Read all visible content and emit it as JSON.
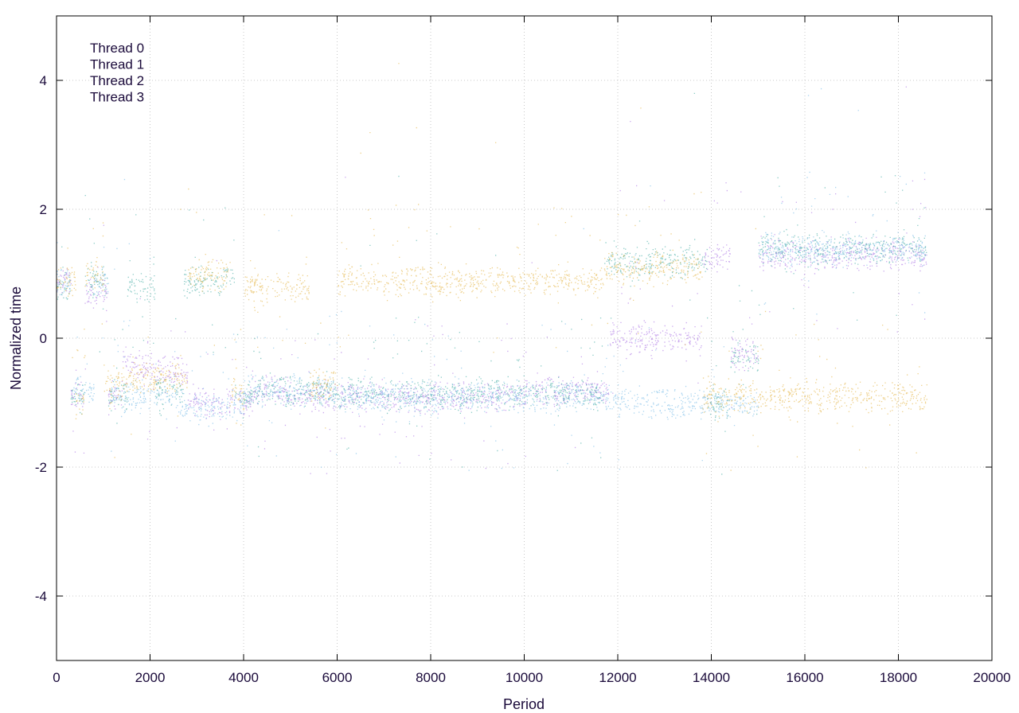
{
  "chart_data": {
    "type": "scatter",
    "title": "",
    "xlabel": "Period",
    "ylabel": "Normalized time",
    "xlim": [
      0,
      20000
    ],
    "ylim": [
      -5,
      5
    ],
    "xticks": [
      0,
      2000,
      4000,
      6000,
      8000,
      10000,
      12000,
      14000,
      16000,
      18000,
      20000
    ],
    "yticks": [
      -4,
      -2,
      0,
      2,
      4
    ],
    "grid": true,
    "legend_position": "top-left",
    "series": [
      {
        "name": "Thread 0",
        "color": "#9e5fe0",
        "segments": [
          [
            0,
            300,
            0.9
          ],
          [
            300,
            600,
            -0.9
          ],
          [
            600,
            1100,
            0.7
          ],
          [
            1100,
            1400,
            -0.9
          ],
          [
            1400,
            2000,
            -0.4
          ],
          [
            2000,
            2800,
            -0.5
          ],
          [
            2800,
            4200,
            -1.0
          ],
          [
            4200,
            5000,
            -0.8
          ],
          [
            5000,
            6000,
            -0.9
          ],
          [
            6000,
            8000,
            -0.9
          ],
          [
            8000,
            10000,
            -0.9
          ],
          [
            10000,
            11800,
            -0.8
          ],
          [
            11800,
            13800,
            0.0
          ],
          [
            13800,
            14400,
            1.3
          ],
          [
            14400,
            15000,
            -0.2
          ],
          [
            15000,
            18600,
            1.3
          ]
        ]
      },
      {
        "name": "Thread 1",
        "color": "#2aa198",
        "segments": [
          [
            0,
            300,
            0.8
          ],
          [
            300,
            600,
            -0.9
          ],
          [
            600,
            1100,
            0.9
          ],
          [
            1100,
            1500,
            -0.9
          ],
          [
            1500,
            2100,
            0.8
          ],
          [
            2100,
            2700,
            -0.8
          ],
          [
            2700,
            3800,
            0.9
          ],
          [
            3800,
            4300,
            -0.9
          ],
          [
            4300,
            6000,
            -0.8
          ],
          [
            6000,
            11700,
            -0.85
          ],
          [
            11700,
            13900,
            1.2
          ],
          [
            13900,
            14400,
            -1.0
          ],
          [
            14400,
            15000,
            -0.3
          ],
          [
            15000,
            18600,
            1.4
          ]
        ]
      },
      {
        "name": "Thread 2",
        "color": "#66b3e3",
        "segments": [
          [
            0,
            300,
            0.9
          ],
          [
            300,
            800,
            -0.8
          ],
          [
            800,
            1100,
            0.9
          ],
          [
            1100,
            2600,
            -0.9
          ],
          [
            2600,
            4000,
            -1.05
          ],
          [
            4000,
            6000,
            -0.8
          ],
          [
            6000,
            12000,
            -0.9
          ],
          [
            12000,
            15000,
            -1.0
          ],
          [
            15000,
            18600,
            1.4
          ]
        ]
      },
      {
        "name": "Thread 3",
        "color": "#e0a92a",
        "segments": [
          [
            0,
            400,
            0.9
          ],
          [
            400,
            600,
            -1.0
          ],
          [
            600,
            1000,
            1.0
          ],
          [
            1000,
            1500,
            -0.7
          ],
          [
            1500,
            2800,
            -0.6
          ],
          [
            2800,
            3700,
            1.0
          ],
          [
            3700,
            4000,
            -0.9
          ],
          [
            4000,
            5400,
            0.8
          ],
          [
            5400,
            6000,
            -0.7
          ],
          [
            6000,
            11700,
            0.9
          ],
          [
            11700,
            13800,
            1.1
          ],
          [
            13800,
            15100,
            -0.9
          ],
          [
            15100,
            18600,
            -0.9
          ]
        ]
      }
    ],
    "note_segments": "each segment is [x_start, x_end, approximate mean y] in data units"
  }
}
